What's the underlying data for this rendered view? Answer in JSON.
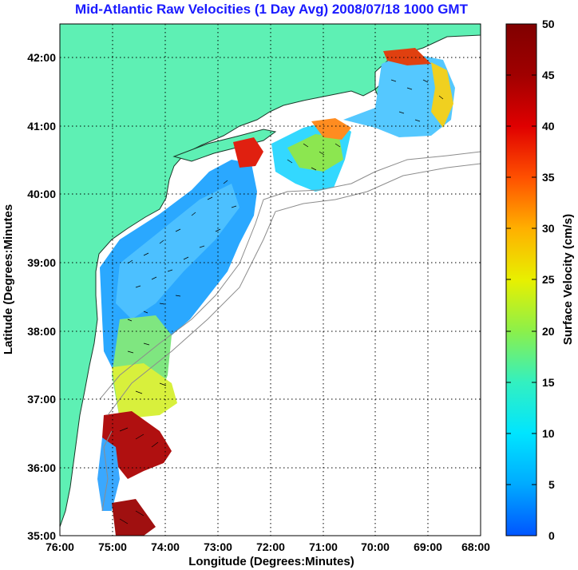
{
  "title": "Mid-Atlantic Raw Velocities (1 Day Avg) 2008/07/18 1000 GMT",
  "x_axis": {
    "label": "Longitude (Degrees:Minutes)",
    "ticks": [
      "76:00",
      "75:00",
      "74:00",
      "73:00",
      "72:00",
      "71:00",
      "70:00",
      "69:00",
      "68:00"
    ]
  },
  "y_axis": {
    "label": "Latitude (Degrees:Minutes",
    "ticks": [
      "42:00",
      "41:00",
      "40:00",
      "39:00",
      "38:00",
      "37:00",
      "36:00",
      "35:00"
    ]
  },
  "colorbar": {
    "label": "Surface Velocity (cm/s)",
    "ticks": [
      "50",
      "45",
      "40",
      "35",
      "30",
      "25",
      "20",
      "15",
      "10",
      "5",
      "0"
    ],
    "range": [
      0,
      50
    ],
    "colors": [
      "#0055ff",
      "#00aaff",
      "#00e5ff",
      "#33f0c0",
      "#8cf04a",
      "#e8f000",
      "#ffb000",
      "#ff5000",
      "#e00000",
      "#a00000",
      "#800000"
    ]
  },
  "colors": {
    "land": "#5ef0b4",
    "contour": "#8c8c8c",
    "grid": "#000000",
    "title": "#1a1aff"
  }
}
